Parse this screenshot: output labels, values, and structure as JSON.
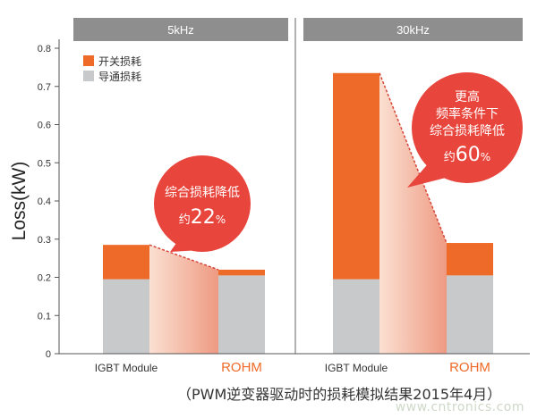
{
  "chart_data": {
    "type": "bar",
    "stacked": true,
    "ylabel": "Loss(kW)",
    "ylim": [
      0,
      0.8
    ],
    "yticks": [
      "0",
      "0.1",
      "0.2",
      "0.3",
      "0.4",
      "0.5",
      "0.6",
      "0.7",
      "0.8"
    ],
    "legend": {
      "placement": "top-left",
      "items": [
        {
          "name": "开关损耗",
          "color": "#ee6a28"
        },
        {
          "name": "导通损耗",
          "color": "#c8c9cb"
        }
      ]
    },
    "panels": [
      {
        "header": "5kHz",
        "categories": [
          "IGBT Module",
          "ROHM"
        ],
        "series": [
          {
            "name": "导通损耗",
            "values": [
              0.195,
              0.205
            ]
          },
          {
            "name": "开关损耗",
            "values": [
              0.09,
              0.015
            ]
          }
        ],
        "callout": {
          "prefix": "综合损耗降低",
          "approx": "约",
          "value": "22",
          "unit": "%"
        }
      },
      {
        "header": "30kHz",
        "categories": [
          "IGBT Module",
          "ROHM"
        ],
        "series": [
          {
            "name": "导通损耗",
            "values": [
              0.195,
              0.205
            ]
          },
          {
            "name": "开关损耗",
            "values": [
              0.54,
              0.085
            ]
          }
        ],
        "callout": {
          "lines": [
            "更高",
            "频率条件下",
            "综合损耗降低"
          ],
          "approx": "约",
          "value": "60",
          "unit": "%"
        }
      }
    ]
  },
  "caption": "（PWM逆变器驱动时的损耗模拟结果2015年4月）",
  "watermark": "www.cntronics.com",
  "colors": {
    "switching": "#ee6a28",
    "conduction": "#c8c9cb",
    "header": "#8e8e8e",
    "callout": "#e8453c",
    "rohm_label": "#ee6a28"
  }
}
